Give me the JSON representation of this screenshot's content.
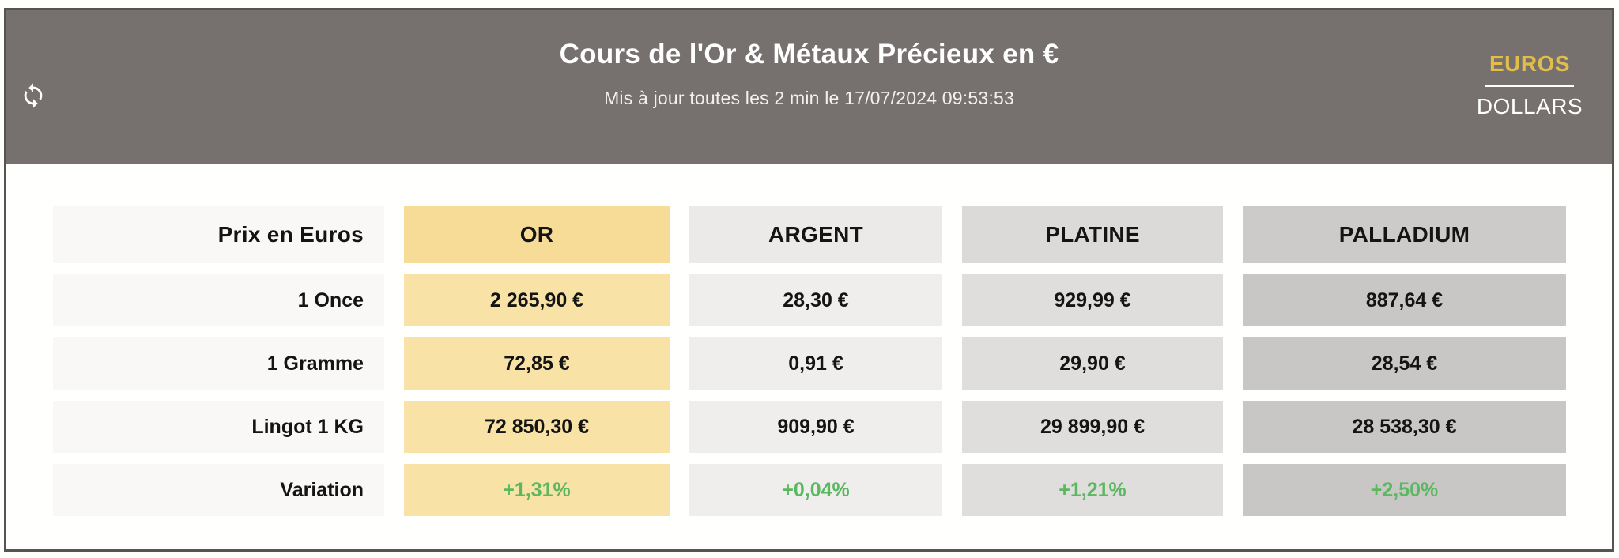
{
  "widget": {
    "title": "Cours de l'Or & Métaux Précieux en €",
    "subtitle": "Mis à jour toutes les 2 min le 17/07/2024 09:53:53",
    "currency_toggle": {
      "selected": "EUROS",
      "options": [
        "EUROS",
        "DOLLARS"
      ]
    },
    "icons": {
      "refresh": "refresh-circular-arrows"
    },
    "table": {
      "corner_label": "Prix en Euros",
      "columns": [
        "OR",
        "ARGENT",
        "PLATINE",
        "PALLADIUM"
      ],
      "rows": [
        {
          "label": "1 Once",
          "type": "price",
          "values": [
            "2 265,90 €",
            "28,30 €",
            "929,99 €",
            "887,64 €"
          ]
        },
        {
          "label": "1 Gramme",
          "type": "price",
          "values": [
            "72,85 €",
            "0,91 €",
            "29,90 €",
            "28,54 €"
          ]
        },
        {
          "label": "Lingot 1 KG",
          "type": "price",
          "values": [
            "72 850,30 €",
            "909,90 €",
            "29 899,90 €",
            "28 538,30 €"
          ]
        },
        {
          "label": "Variation",
          "type": "variation",
          "values": [
            "+1,31%",
            "+0,04%",
            "+1,21%",
            "+2,50%"
          ]
        }
      ]
    },
    "colors": {
      "header_bg": "#76716f",
      "frame_border": "#57534f",
      "accent_gold_text": "#e2bd4a",
      "gold_header": "#f6dc96",
      "gold_cell": "#f8e2a6",
      "silver_header": "#ebeae8",
      "silver_cell": "#efeeec",
      "platinum_header": "#dbdad8",
      "platinum_cell": "#dfdedc",
      "palladium_header": "#cdcbc9",
      "palladium_cell": "#c9c7c5",
      "label_cell": "#f9f8f6",
      "variation_green": "#5cb860"
    }
  }
}
